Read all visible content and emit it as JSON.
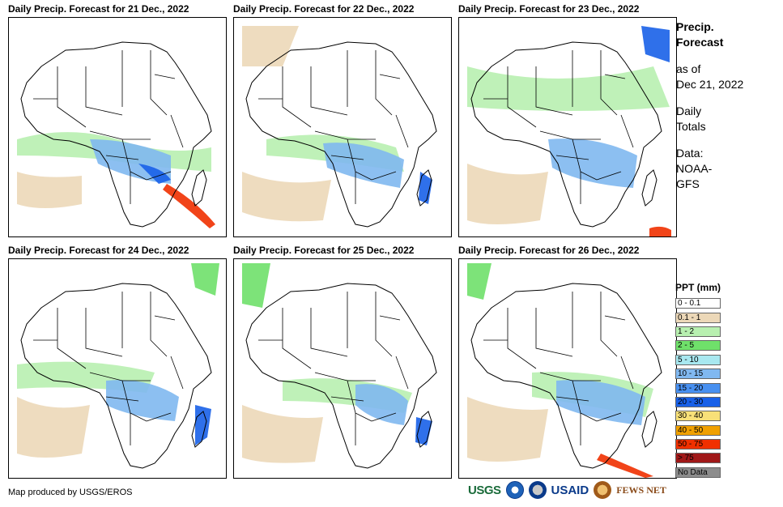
{
  "panels": [
    {
      "title": "Daily Precip. Forecast for 21 Dec., 2022"
    },
    {
      "title": "Daily Precip. Forecast for 22 Dec., 2022"
    },
    {
      "title": "Daily Precip. Forecast for 23 Dec., 2022"
    },
    {
      "title": "Daily Precip. Forecast for 24 Dec., 2022"
    },
    {
      "title": "Daily Precip. Forecast for 25 Dec., 2022"
    },
    {
      "title": "Daily Precip. Forecast for 26 Dec., 2022"
    }
  ],
  "info": {
    "title_line1": "Precip.",
    "title_line2": "Forecast",
    "asof_line1": "as of",
    "asof_line2": "Dec 21, 2022",
    "totals_line1": "Daily",
    "totals_line2": "Totals",
    "data_line1": "Data:",
    "data_line2": "NOAA-",
    "data_line3": "GFS"
  },
  "legend": {
    "title": "PPT (mm)",
    "items": [
      {
        "label": "0 - 0.1",
        "color": "#ffffff"
      },
      {
        "label": "0.1 - 1",
        "color": "#ecd8b8"
      },
      {
        "label": "1 - 2",
        "color": "#b8f0b0"
      },
      {
        "label": "2 - 5",
        "color": "#6fe06a"
      },
      {
        "label": "5 - 10",
        "color": "#a8e8f0"
      },
      {
        "label": "10 - 15",
        "color": "#80b8f0"
      },
      {
        "label": "15 - 20",
        "color": "#4890f0"
      },
      {
        "label": "20 - 30",
        "color": "#1860e8"
      },
      {
        "label": "30 - 40",
        "color": "#f8e078"
      },
      {
        "label": "40 - 50",
        "color": "#f0a000"
      },
      {
        "label": "50 - 75",
        "color": "#f03000"
      },
      {
        "label": "> 75",
        "color": "#a01818"
      },
      {
        "label": "No Data",
        "color": "#8c8c8c"
      }
    ]
  },
  "credit": "Map produced by USGS/EROS",
  "logos": {
    "usgs": "USGS",
    "usaid": "USAID",
    "fews": "FEWS NET"
  }
}
